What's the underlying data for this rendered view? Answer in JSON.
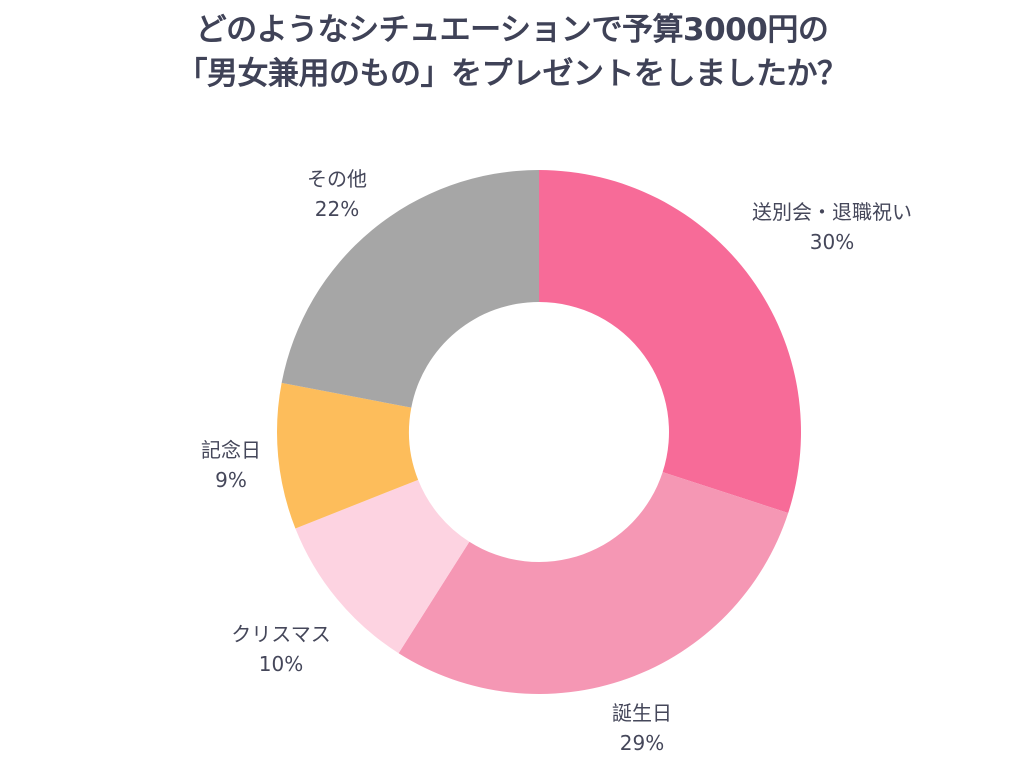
{
  "chart_data": {
    "type": "pie",
    "donut": true,
    "title_lines": [
      "どのようなシチュエーションで予算3000円の",
      "「男女兼用のもの」をプレゼントをしましたか？"
    ],
    "categories": [
      "送別会・退職祝い",
      "誕生日",
      "クリスマス",
      "記念日",
      "その他"
    ],
    "values": [
      30,
      29,
      10,
      9,
      22
    ],
    "value_labels": [
      "30%",
      "29%",
      "10%",
      "9%",
      "22%"
    ],
    "colors": [
      "#f76b98",
      "#f597b4",
      "#fdd3e1",
      "#fdbd5b",
      "#a6a6a6"
    ],
    "legend": "none"
  }
}
